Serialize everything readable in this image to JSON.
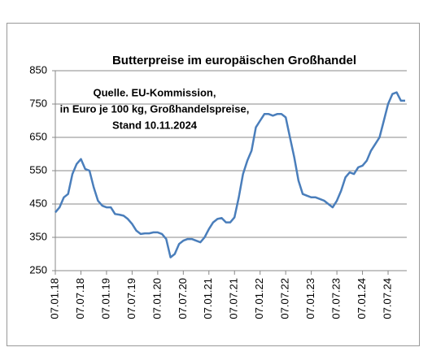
{
  "chart_data": {
    "type": "line",
    "title": "Butterpreise im europäischen Großhandel",
    "annotation": [
      "Quelle. EU-Kommission,",
      "in Euro je 100 kg, Großhandelspreise,",
      "Stand 10.11.2024"
    ],
    "x": [
      "07.01.18",
      "07.02.18",
      "07.03.18",
      "07.04.18",
      "07.05.18",
      "07.06.18",
      "07.07.18",
      "07.08.18",
      "07.09.18",
      "07.10.18",
      "07.11.18",
      "07.12.18",
      "07.01.19",
      "07.02.19",
      "07.03.19",
      "07.04.19",
      "07.05.19",
      "07.06.19",
      "07.07.19",
      "07.08.19",
      "07.09.19",
      "07.10.19",
      "07.11.19",
      "07.12.19",
      "07.01.20",
      "07.02.20",
      "07.03.20",
      "07.04.20",
      "07.05.20",
      "07.06.20",
      "07.07.20",
      "07.08.20",
      "07.09.20",
      "07.10.20",
      "07.11.20",
      "07.12.20",
      "07.01.21",
      "07.02.21",
      "07.03.21",
      "07.04.21",
      "07.05.21",
      "07.06.21",
      "07.07.21",
      "07.08.21",
      "07.09.21",
      "07.10.21",
      "07.11.21",
      "07.12.21",
      "07.01.22",
      "07.02.22",
      "07.03.22",
      "07.04.22",
      "07.05.22",
      "07.06.22",
      "07.07.22",
      "07.08.22",
      "07.09.22",
      "07.10.22",
      "07.11.22",
      "07.12.22",
      "07.01.23",
      "07.02.23",
      "07.03.23",
      "07.04.23",
      "07.05.23",
      "07.06.23",
      "07.07.23",
      "07.08.23",
      "07.09.23",
      "07.10.23",
      "07.11.23",
      "07.12.23",
      "07.01.24",
      "07.02.24",
      "07.03.24",
      "07.04.24",
      "07.05.24",
      "07.06.24",
      "07.07.24",
      "07.08.24",
      "07.09.24",
      "07.10.24",
      "07.11.24"
    ],
    "series": [
      {
        "color": "#4a7ebb",
        "values": [
          425,
          440,
          470,
          480,
          540,
          570,
          585,
          555,
          550,
          500,
          460,
          445,
          440,
          440,
          420,
          418,
          415,
          405,
          390,
          370,
          360,
          362,
          362,
          365,
          365,
          360,
          345,
          290,
          300,
          330,
          340,
          345,
          345,
          340,
          335,
          350,
          375,
          395,
          405,
          408,
          395,
          395,
          410,
          470,
          540,
          580,
          610,
          680,
          700,
          720,
          720,
          715,
          720,
          720,
          710,
          650,
          590,
          520,
          480,
          475,
          470,
          470,
          465,
          460,
          450,
          440,
          460,
          490,
          530,
          545,
          540,
          560,
          565,
          580,
          610,
          630,
          650,
          700,
          750,
          780,
          785,
          760,
          760
        ]
      }
    ],
    "xticks": [
      "07.01.18",
      "07.07.18",
      "07.01.19",
      "07.07.19",
      "07.01.20",
      "07.07.20",
      "07.01.21",
      "07.07.21",
      "07.01.22",
      "07.07.22",
      "07.01.23",
      "07.07.23",
      "07.01.24",
      "07.07.24"
    ],
    "ylim": [
      250,
      850
    ],
    "yticks": [
      250,
      350,
      450,
      550,
      650,
      750,
      850
    ],
    "grid": true
  }
}
